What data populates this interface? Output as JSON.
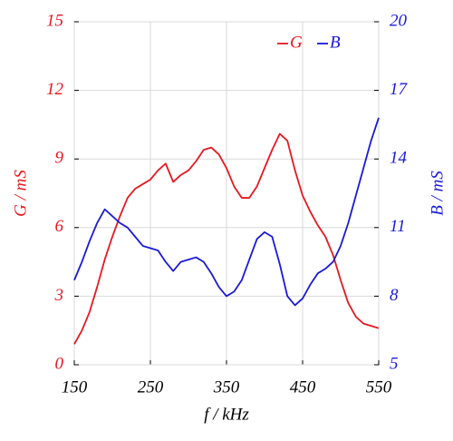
{
  "chart_data": {
    "type": "line",
    "x_label": "f / kHz",
    "y_label": "G / mS",
    "y2_label": "B / mS",
    "x": [
      150,
      160,
      170,
      180,
      190,
      200,
      210,
      220,
      230,
      240,
      250,
      260,
      270,
      280,
      290,
      300,
      310,
      320,
      330,
      340,
      350,
      360,
      370,
      380,
      390,
      400,
      410,
      420,
      430,
      440,
      450,
      460,
      470,
      480,
      490,
      500,
      510,
      520,
      530,
      540,
      550
    ],
    "series": [
      {
        "name": "G",
        "color": "#e8171f",
        "axis": "y",
        "values": [
          0.9,
          1.5,
          2.3,
          3.4,
          4.6,
          5.6,
          6.5,
          7.3,
          7.7,
          7.9,
          8.1,
          8.5,
          8.8,
          8.0,
          8.3,
          8.5,
          8.9,
          9.4,
          9.5,
          9.2,
          8.6,
          7.8,
          7.3,
          7.3,
          7.8,
          8.6,
          9.4,
          10.1,
          9.8,
          8.5,
          7.4,
          6.7,
          6.1,
          5.6,
          4.8,
          3.7,
          2.7,
          2.1,
          1.8,
          1.7,
          1.6
        ]
      },
      {
        "name": "B",
        "color": "#1a1ad6",
        "axis": "y2",
        "values": [
          8.7,
          9.5,
          10.4,
          11.2,
          11.8,
          11.5,
          11.2,
          11.0,
          10.6,
          10.2,
          10.1,
          10.0,
          9.5,
          9.1,
          9.5,
          9.6,
          9.7,
          9.5,
          9.0,
          8.4,
          8.0,
          8.2,
          8.7,
          9.6,
          10.5,
          10.8,
          10.6,
          9.4,
          8.0,
          7.6,
          7.9,
          8.5,
          9.0,
          9.2,
          9.5,
          10.2,
          11.2,
          12.4,
          13.6,
          14.8,
          15.8
        ]
      }
    ],
    "xlim": [
      150,
      550
    ],
    "xticks": [
      150,
      250,
      350,
      450,
      550
    ],
    "ylim": [
      0,
      15
    ],
    "yticks": [
      0,
      3,
      6,
      9,
      12,
      15
    ],
    "y2lim": [
      5,
      20
    ],
    "y2ticks": [
      5,
      8,
      11,
      14,
      17,
      20
    ],
    "grid": true,
    "legend": "top-right"
  }
}
